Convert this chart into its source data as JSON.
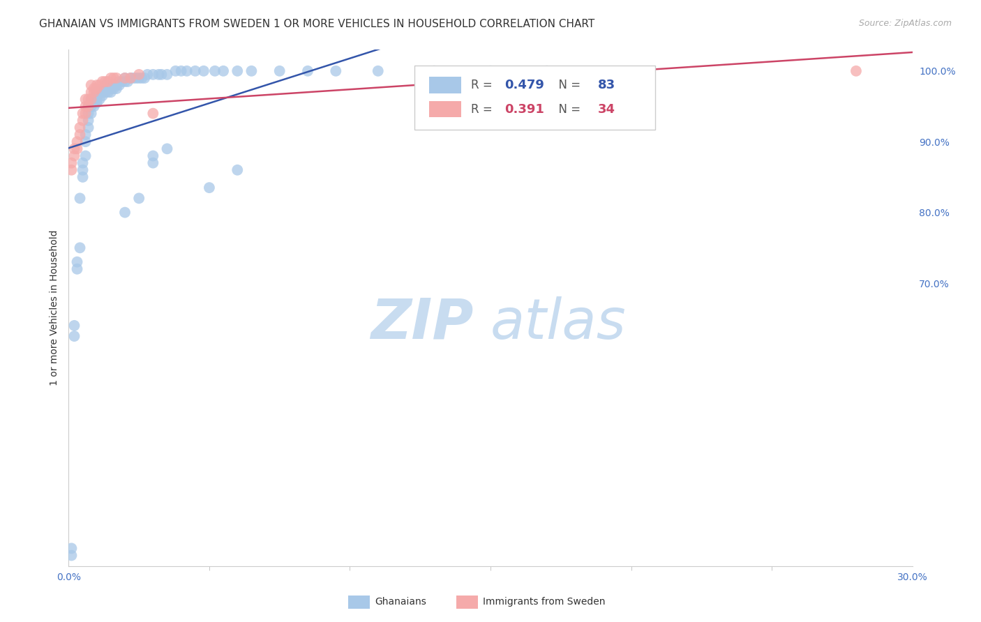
{
  "title": "GHANAIAN VS IMMIGRANTS FROM SWEDEN 1 OR MORE VEHICLES IN HOUSEHOLD CORRELATION CHART",
  "source": "Source: ZipAtlas.com",
  "ylabel": "1 or more Vehicles in Household",
  "xlim": [
    0.0,
    0.3
  ],
  "ylim": [
    0.3,
    1.03
  ],
  "xticks": [
    0.0,
    0.3
  ],
  "yticks": [
    0.7,
    0.8,
    0.9,
    1.0
  ],
  "legend_blue_r": "0.479",
  "legend_blue_n": "83",
  "legend_pink_r": "0.391",
  "legend_pink_n": "34",
  "blue_color": "#A8C8E8",
  "pink_color": "#F5AAAA",
  "trendline_blue": "#3355AA",
  "trendline_pink": "#CC4466",
  "blue_x": [
    0.001,
    0.001,
    0.002,
    0.002,
    0.003,
    0.003,
    0.004,
    0.004,
    0.005,
    0.005,
    0.005,
    0.006,
    0.006,
    0.006,
    0.007,
    0.007,
    0.007,
    0.007,
    0.008,
    0.008,
    0.008,
    0.009,
    0.009,
    0.01,
    0.01,
    0.01,
    0.01,
    0.011,
    0.011,
    0.012,
    0.012,
    0.013,
    0.013,
    0.013,
    0.014,
    0.014,
    0.015,
    0.015,
    0.015,
    0.016,
    0.016,
    0.017,
    0.017,
    0.018,
    0.018,
    0.019,
    0.02,
    0.02,
    0.021,
    0.022,
    0.023,
    0.024,
    0.025,
    0.026,
    0.027,
    0.028,
    0.03,
    0.032,
    0.033,
    0.035,
    0.038,
    0.04,
    0.042,
    0.045,
    0.048,
    0.052,
    0.055,
    0.06,
    0.065,
    0.075,
    0.085,
    0.095,
    0.11,
    0.13,
    0.15,
    0.17,
    0.02,
    0.025,
    0.03,
    0.03,
    0.035,
    0.05,
    0.06
  ],
  "blue_y": [
    0.315,
    0.325,
    0.625,
    0.64,
    0.72,
    0.73,
    0.75,
    0.82,
    0.85,
    0.86,
    0.87,
    0.88,
    0.9,
    0.91,
    0.92,
    0.93,
    0.94,
    0.95,
    0.94,
    0.95,
    0.96,
    0.95,
    0.96,
    0.955,
    0.96,
    0.965,
    0.97,
    0.96,
    0.97,
    0.965,
    0.97,
    0.97,
    0.975,
    0.98,
    0.97,
    0.975,
    0.97,
    0.975,
    0.98,
    0.975,
    0.98,
    0.975,
    0.98,
    0.98,
    0.985,
    0.985,
    0.985,
    0.99,
    0.985,
    0.99,
    0.99,
    0.99,
    0.99,
    0.99,
    0.99,
    0.995,
    0.995,
    0.995,
    0.995,
    0.995,
    1.0,
    1.0,
    1.0,
    1.0,
    1.0,
    1.0,
    1.0,
    1.0,
    1.0,
    1.0,
    1.0,
    1.0,
    1.0,
    1.0,
    1.0,
    1.0,
    0.8,
    0.82,
    0.87,
    0.88,
    0.89,
    0.835,
    0.86
  ],
  "pink_x": [
    0.001,
    0.001,
    0.002,
    0.002,
    0.003,
    0.003,
    0.004,
    0.004,
    0.005,
    0.005,
    0.006,
    0.006,
    0.006,
    0.007,
    0.007,
    0.008,
    0.008,
    0.008,
    0.009,
    0.009,
    0.01,
    0.01,
    0.011,
    0.012,
    0.013,
    0.014,
    0.015,
    0.016,
    0.017,
    0.02,
    0.022,
    0.025,
    0.28,
    0.03
  ],
  "pink_y": [
    0.86,
    0.87,
    0.88,
    0.89,
    0.89,
    0.9,
    0.91,
    0.92,
    0.93,
    0.94,
    0.94,
    0.95,
    0.96,
    0.95,
    0.96,
    0.96,
    0.97,
    0.98,
    0.97,
    0.975,
    0.975,
    0.98,
    0.98,
    0.985,
    0.985,
    0.985,
    0.99,
    0.99,
    0.99,
    0.99,
    0.99,
    0.995,
    1.0,
    0.94
  ],
  "watermark_zip": "ZIP",
  "watermark_atlas": "atlas",
  "watermark_color": "#C8DCF0",
  "background_color": "#FFFFFF",
  "grid_color": "#DDDDDD",
  "tick_color": "#4472C4",
  "axis_label_color": "#333333"
}
